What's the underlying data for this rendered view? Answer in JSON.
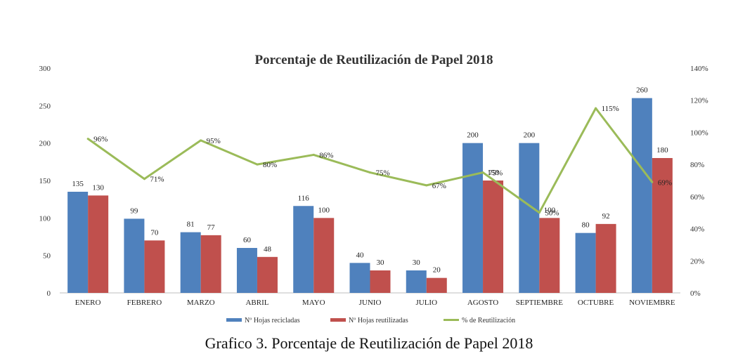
{
  "caption": "Grafico 3. Porcentaje de Reutilización de Papel 2018",
  "chart_data": {
    "type": "bar",
    "title": "Porcentaje de Reutilización de Papel 2018",
    "categories": [
      "ENERO",
      "FEBRERO",
      "MARZO",
      "ABRIL",
      "MAYO",
      "JUNIO",
      "JULIO",
      "AGOSTO",
      "SEPTIEMBRE",
      "OCTUBRE",
      "NOVIEMBRE"
    ],
    "series": [
      {
        "name": "Nº Hojas recicladas",
        "type": "bar",
        "axis": "left",
        "color": "#4F81BD",
        "values": [
          135,
          99,
          81,
          60,
          116,
          40,
          30,
          200,
          200,
          80,
          260
        ],
        "labels": [
          "135",
          "99",
          "81",
          "60",
          "116",
          "40",
          "30",
          "200",
          "200",
          "80",
          "260"
        ]
      },
      {
        "name": "Nº Hojas reutilizadas",
        "type": "bar",
        "axis": "left",
        "color": "#C0504D",
        "values": [
          130,
          70,
          77,
          48,
          100,
          30,
          20,
          150,
          100,
          92,
          180
        ],
        "labels": [
          "130",
          "70",
          "77",
          "48",
          "100",
          "30",
          "20",
          "150",
          "100",
          "92",
          "180"
        ]
      },
      {
        "name": "% de Reutilización",
        "type": "line",
        "axis": "right",
        "color": "#9BBB59",
        "values": [
          96,
          71,
          95,
          80,
          86,
          75,
          67,
          75,
          50,
          115,
          69
        ],
        "labels": [
          "96%",
          "71%",
          "95%",
          "80%",
          "86%",
          "75%",
          "67%",
          "75%",
          "50%",
          "115%",
          "69%"
        ]
      }
    ],
    "y_left": {
      "ylim": [
        0,
        300
      ],
      "ticks": [
        "0",
        "50",
        "100",
        "150",
        "200",
        "250",
        "300"
      ]
    },
    "y_right": {
      "ylim": [
        0,
        140
      ],
      "ticks": [
        "0%",
        "20%",
        "40%",
        "60%",
        "80%",
        "100%",
        "120%",
        "140%"
      ]
    },
    "grid": false,
    "legend": "bottom"
  }
}
